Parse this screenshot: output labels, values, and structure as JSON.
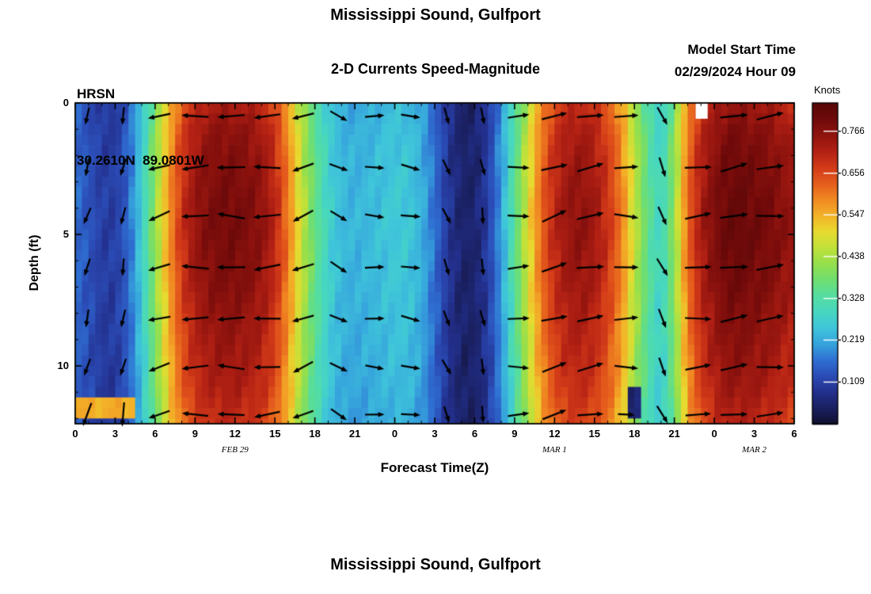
{
  "page": {
    "top_title": "Mississippi Sound, Gulfport",
    "bottom_title": "Mississippi Sound, Gulfport"
  },
  "header": {
    "station": "HRSN",
    "location": "30.2610N  89.0801W",
    "subtitle": "2-D Currents Speed-Magnitude",
    "model_start_label": "Model Start Time",
    "model_start_value": "02/29/2024 Hour 09"
  },
  "chart_data": {
    "type": "heatmap",
    "title": "Mississippi Sound, Gulfport",
    "subtitle": "2-D Currents Speed-Magnitude",
    "station": "HRSN",
    "location": "30.2610N 89.0801W",
    "model_start": "02/29/2024 Hour 09",
    "xlabel": "Forecast Time(Z)",
    "ylabel": "Depth (ft)",
    "colorbar_label": "Knots",
    "colorbar_tick_labels": [
      "0.109",
      "0.219",
      "0.328",
      "0.438",
      "0.547",
      "0.656",
      "0.766"
    ],
    "colorbar_range": [
      0.0,
      0.84
    ],
    "x_hours_total": 54,
    "x_tick_step_hours": 3,
    "x_tick_labels": [
      "0",
      "3",
      "6",
      "9",
      "12",
      "15",
      "18",
      "21",
      "0",
      "3",
      "6",
      "9",
      "12",
      "15",
      "18",
      "21",
      "0",
      "3",
      "6"
    ],
    "date_labels": [
      {
        "text": "FEB 29",
        "hour": 12
      },
      {
        "text": "MAR 1",
        "hour": 36
      },
      {
        "text": "MAR 2",
        "hour": 51
      }
    ],
    "depth_range": [
      0,
      12.2
    ],
    "y_ticks": [
      0,
      5,
      10
    ],
    "speed_by_hour_knots": [
      0.16,
      0.13,
      0.1,
      0.1,
      0.15,
      0.26,
      0.4,
      0.55,
      0.66,
      0.72,
      0.75,
      0.76,
      0.76,
      0.75,
      0.73,
      0.68,
      0.58,
      0.45,
      0.35,
      0.27,
      0.23,
      0.22,
      0.23,
      0.24,
      0.25,
      0.25,
      0.22,
      0.16,
      0.09,
      0.05,
      0.05,
      0.1,
      0.2,
      0.33,
      0.47,
      0.6,
      0.68,
      0.72,
      0.73,
      0.71,
      0.66,
      0.58,
      0.45,
      0.34,
      0.27,
      0.4,
      0.6,
      0.7,
      0.75,
      0.78,
      0.78,
      0.77,
      0.76,
      0.74,
      0.72
    ],
    "direction_by_hour_deg": [
      245,
      255,
      265,
      270,
      250,
      225,
      200,
      190,
      185,
      182,
      180,
      178,
      178,
      180,
      183,
      186,
      190,
      198,
      230,
      300,
      340,
      352,
      356,
      358,
      356,
      352,
      345,
      320,
      290,
      272,
      262,
      290,
      330,
      358,
      370,
      375,
      378,
      376,
      373,
      370,
      368,
      365,
      350,
      315,
      290,
      330,
      358,
      366,
      370,
      370,
      369,
      368,
      367,
      366,
      365
    ],
    "depth_profile_multipliers": [
      0.96,
      1.0,
      1.02,
      1.03,
      1.04,
      1.04,
      1.03,
      1.02,
      1.0,
      0.985,
      0.97,
      0.95,
      0.92
    ],
    "anomalies": [
      {
        "type": "high",
        "h0": 0.0,
        "h1": 4.5,
        "d0": 11.4,
        "d1": 12.2,
        "value": 0.55
      },
      {
        "type": "low",
        "h0": 41.3,
        "h1": 42.7,
        "d0": 10.9,
        "d1": 12.2,
        "value": 0.05
      },
      {
        "type": "missing",
        "h0": 46.6,
        "h1": 47.5,
        "d0": 0.0,
        "d1": 0.6
      }
    ],
    "arrows": {
      "color": "#000000",
      "row_depths_ft": [
        0.5,
        2.45,
        4.3,
        6.25,
        8.2,
        10.05,
        11.85
      ],
      "col_start_hour": 0.9,
      "col_step_hours": 2.7
    },
    "colormap": [
      [
        0.0,
        "#10102e"
      ],
      [
        0.05,
        "#1a2060"
      ],
      [
        0.1,
        "#23308e"
      ],
      [
        0.15,
        "#2b4cb6"
      ],
      [
        0.2,
        "#2f70d2"
      ],
      [
        0.25,
        "#36a4dc"
      ],
      [
        0.3,
        "#3fc5da"
      ],
      [
        0.35,
        "#47d7c0"
      ],
      [
        0.4,
        "#55dda0"
      ],
      [
        0.45,
        "#70de70"
      ],
      [
        0.5,
        "#95df4c"
      ],
      [
        0.55,
        "#c0e13a"
      ],
      [
        0.6,
        "#e7da30"
      ],
      [
        0.65,
        "#f3b128"
      ],
      [
        0.7,
        "#f08922"
      ],
      [
        0.75,
        "#e55d1c"
      ],
      [
        0.8,
        "#d23a18"
      ],
      [
        0.85,
        "#b32114"
      ],
      [
        0.9,
        "#8f130e"
      ],
      [
        0.95,
        "#700a0a"
      ],
      [
        1.0,
        "#580707"
      ]
    ],
    "legend_position": "right-colorbar",
    "grid": false
  }
}
